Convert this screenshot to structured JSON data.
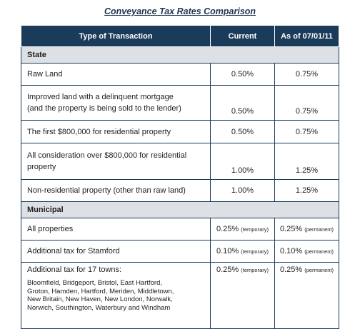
{
  "title": "Conveyance Tax Rates Comparison",
  "headers": [
    "Type of Transaction",
    "Current",
    "As of 07/01/11"
  ],
  "sections": {
    "state": "State",
    "municipal": "Municipal"
  },
  "state_rows": [
    {
      "label": "Raw Land",
      "current": "0.50%",
      "future": "0.75%"
    },
    {
      "label_line1": "Improved land with a delinquent mortgage",
      "label_line2": "(and the property is being sold to the lender)",
      "current": "0.50%",
      "future": "0.75%"
    },
    {
      "label": "The first $800,000 for residential property",
      "current": "0.50%",
      "future": "0.75%"
    },
    {
      "label_line1": "All consideration over $800,000 for residential",
      "label_line2": "property",
      "current": "1.00%",
      "future": "1.25%"
    },
    {
      "label": "Non-residential property (other than raw land)",
      "current": "1.00%",
      "future": "1.25%"
    }
  ],
  "municipal_rows": [
    {
      "label": "All properties",
      "current": "0.25%",
      "current_note": "(temporary)",
      "future": "0.25%",
      "future_note": "(permanent)"
    },
    {
      "label": "Additional tax for Stamford",
      "current": "0.10%",
      "current_note": "(temporary)",
      "future": "0.10%",
      "future_note": "(permanent)"
    },
    {
      "label": "Additional tax for 17 towns:",
      "towns": [
        "Bloomfield, Bridgeport, Bristol, East Hartford,",
        "Groton, Hamden, Hartford, Meriden, Middletown,",
        "New Britain, New Haven, New London, Norwalk,",
        "Norwich, Southington, Waterbury and Windham"
      ],
      "current": "0.25%",
      "current_note": "(temporary)",
      "future": "0.25%",
      "future_note": "(permanent)"
    }
  ]
}
